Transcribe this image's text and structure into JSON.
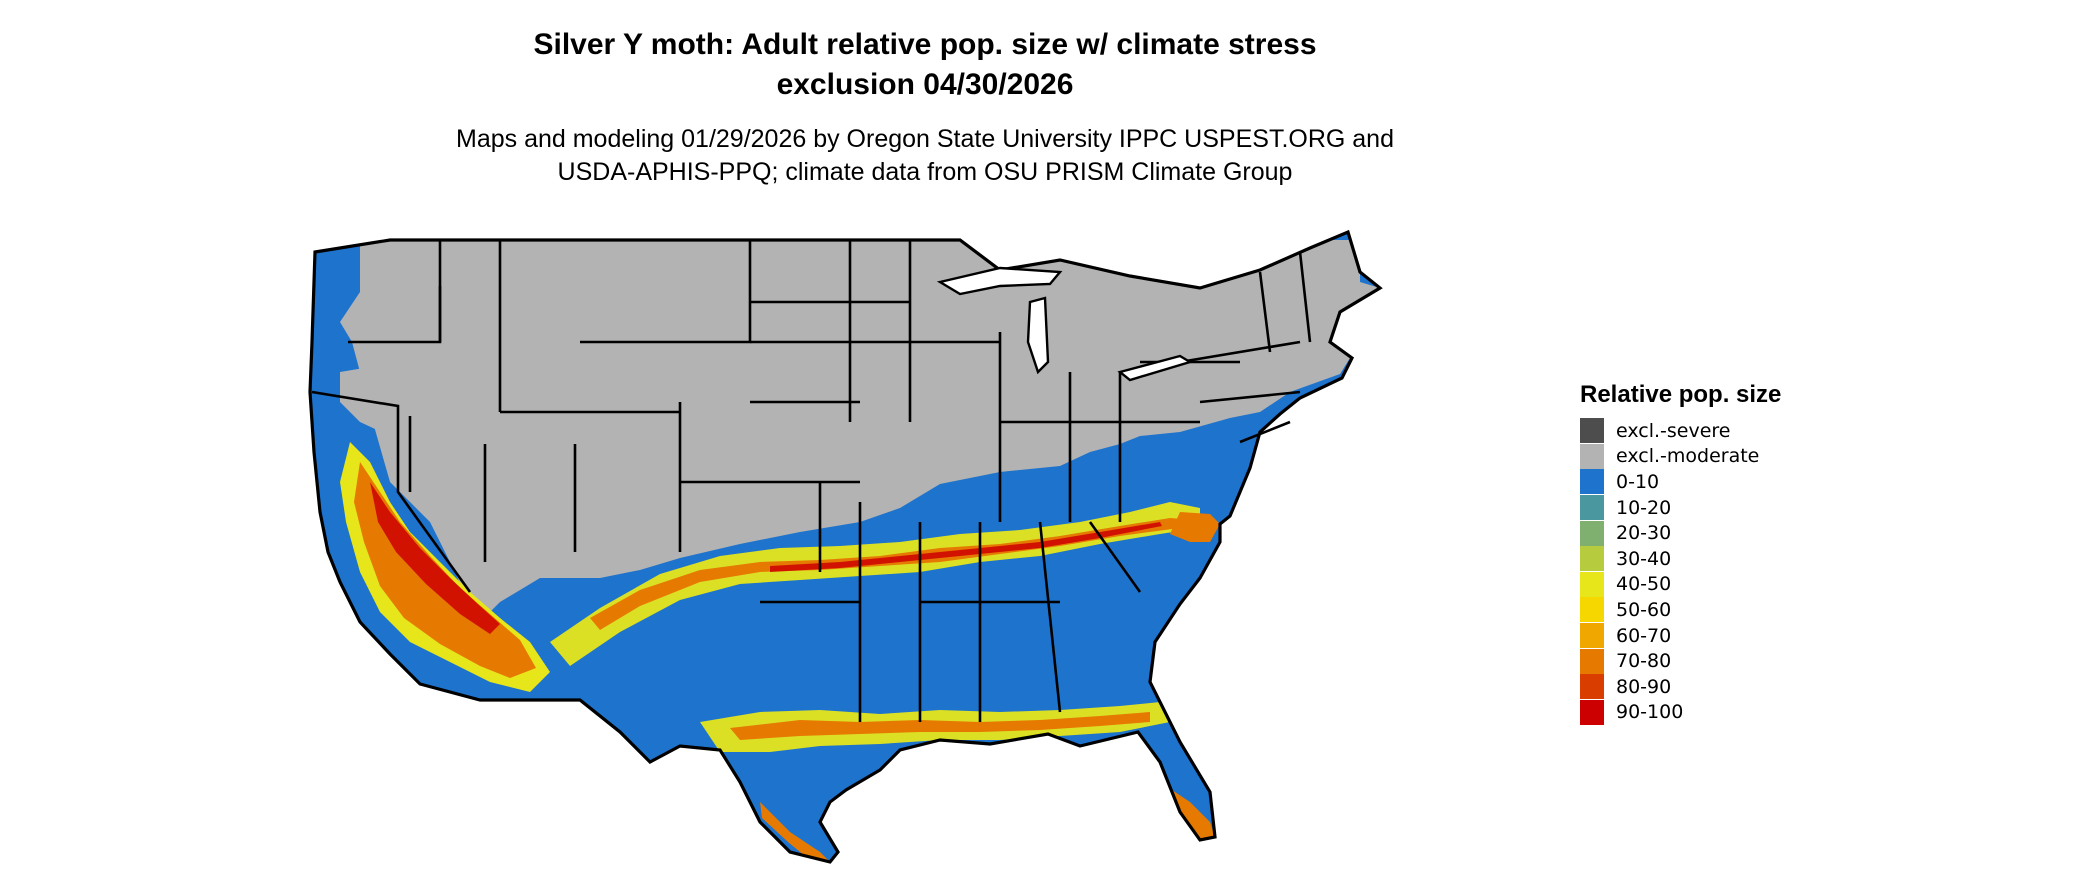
{
  "title": {
    "line1": "Silver Y moth: Adult relative pop. size w/ climate stress",
    "line2": "exclusion 04/30/2026"
  },
  "subtitle": {
    "line1": "Maps and modeling 01/29/2026 by Oregon State University IPPC USPEST.ORG and",
    "line2": "USDA-APHIS-PPQ; climate data from OSU PRISM Climate Group"
  },
  "legend": {
    "title": "Relative pop. size",
    "items": [
      {
        "label": "excl.-severe",
        "color": "#4d4d4d"
      },
      {
        "label": "excl.-moderate",
        "color": "#b3b3b3"
      },
      {
        "label": "0-10",
        "color": "#1e73cc"
      },
      {
        "label": "10-20",
        "color": "#4a97a0"
      },
      {
        "label": "20-30",
        "color": "#7fb070"
      },
      {
        "label": "30-40",
        "color": "#b6cc3e"
      },
      {
        "label": "40-50",
        "color": "#e6e61a"
      },
      {
        "label": "50-60",
        "color": "#f7d700"
      },
      {
        "label": "60-70",
        "color": "#f0a800"
      },
      {
        "label": "70-80",
        "color": "#e67a00"
      },
      {
        "label": "80-90",
        "color": "#d93d00"
      },
      {
        "label": "90-100",
        "color": "#cc0000"
      }
    ]
  },
  "map": {
    "region": "Contiguous United States",
    "colors": {
      "excluded_moderate": "#b3b3b3",
      "low": "#1e73cc",
      "mid": "#e6e61a",
      "high": "#e67a00",
      "peak": "#cc0000",
      "border": "#000000"
    }
  }
}
